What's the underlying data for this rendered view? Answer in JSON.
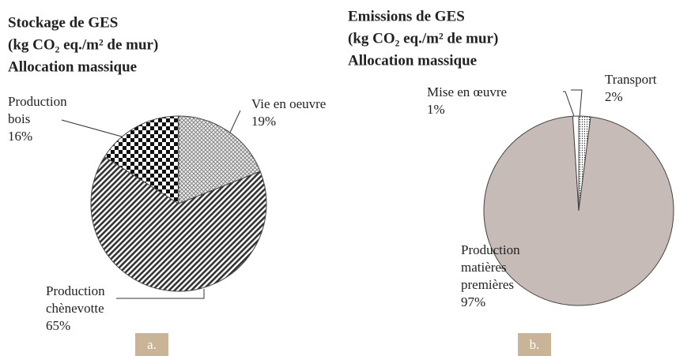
{
  "chart_data": [
    {
      "type": "pie",
      "title": [
        "Stockage de GES",
        "(kg CO₂ eq./m² de mur)",
        "Allocation massique"
      ],
      "categories": [
        "Vie en oeuvre",
        "Production\nchènevotte",
        "Production\nbois"
      ],
      "values": [
        19,
        65,
        16
      ],
      "value_labels": [
        "19%",
        "65%",
        "16%"
      ],
      "patterns": [
        "crosshatch",
        "diagonal",
        "checker"
      ],
      "panel": "a."
    },
    {
      "type": "pie",
      "title": [
        "Emissions de GES",
        "(kg CO₂ eq./m² de mur)",
        "Allocation massique"
      ],
      "categories": [
        "Transport",
        "Production\nmatières\npremières",
        "Mise en œuvre"
      ],
      "values": [
        2,
        97,
        1
      ],
      "value_labels": [
        "2%",
        "97%",
        "1%"
      ],
      "patterns": [
        "dots",
        "solid",
        "plain"
      ],
      "panel": "b."
    }
  ]
}
